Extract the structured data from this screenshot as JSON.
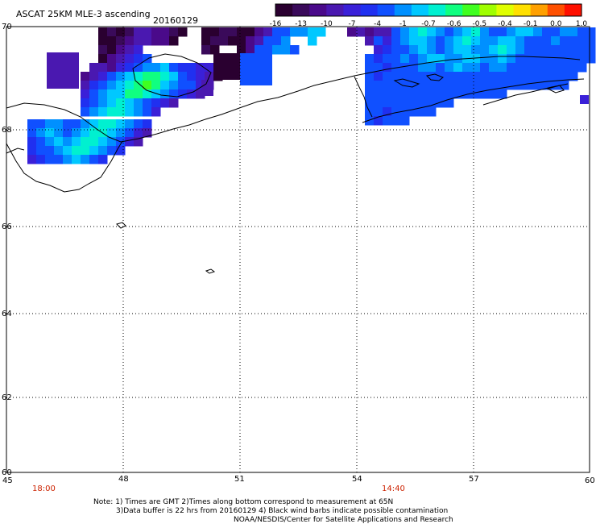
{
  "header": {
    "title": "ASCAT 25KM MLE-3 ascending",
    "date": "20160129"
  },
  "colorbar": {
    "ticks": [
      "-16",
      "-13",
      "-10",
      "-7",
      "-4",
      "-1",
      "-0.7",
      "-0.6",
      "-0.5",
      "-0.4",
      "-0.1",
      "0.0",
      "1.0"
    ],
    "colors": [
      "#2a0030",
      "#3a0a5a",
      "#4a0a8a",
      "#4a18b0",
      "#3a20d8",
      "#2030f0",
      "#1050ff",
      "#0090ff",
      "#00c8ff",
      "#00f0d0",
      "#10ff80",
      "#40ff20",
      "#a0ff00",
      "#e0ff00",
      "#ffe000",
      "#ffa000",
      "#ff5000",
      "#ff1000"
    ]
  },
  "map": {
    "lat_labels": [
      "70",
      "68",
      "66",
      "64",
      "62",
      "60"
    ],
    "lon_labels": [
      "45",
      "48",
      "51",
      "54",
      "57",
      "60"
    ],
    "time_labels": [
      "18:00",
      "14:40"
    ],
    "time_color": "#cc2200"
  },
  "notes": {
    "line1": "Note: 1) Times are GMT 2)Times along bottom correspond to measurement at 65N",
    "line2": "3)Data buffer is 22 hrs from 20160129 4) Black wind barbs indicate possible contamination",
    "line3": "NOAA/NESDIS/Center for Satellite Applications and Research"
  }
}
